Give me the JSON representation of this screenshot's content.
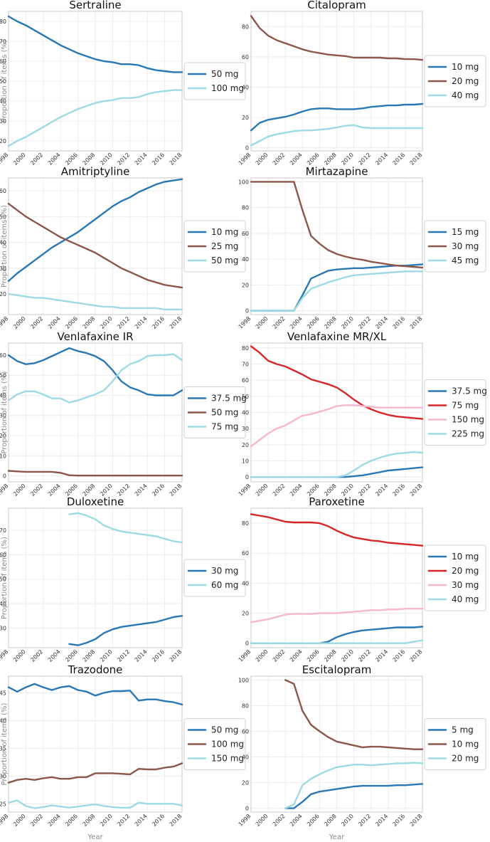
{
  "colors": {
    "blue": "#2878b5",
    "brown": "#8c564b",
    "light_blue": "#9edae5",
    "red": "#d62728",
    "pink": "#f7b6d2"
  },
  "chart_data": [
    {
      "type": "line",
      "title": "Sertraline",
      "xlabel": "",
      "ylabel": "Proportion of items (%)",
      "x": [
        1998,
        1999,
        2000,
        2001,
        2002,
        2003,
        2004,
        2005,
        2006,
        2007,
        2008,
        2009,
        2010,
        2011,
        2012,
        2013,
        2014,
        2015,
        2016,
        2017,
        2018
      ],
      "xlim": [
        1998,
        2018
      ],
      "ylim": [
        15,
        85
      ],
      "yticks": [
        20,
        30,
        40,
        50,
        60,
        70,
        80
      ],
      "series": [
        {
          "name": "50 mg",
          "color": "#2878b5",
          "values": [
            82.5,
            80,
            78,
            75.5,
            73,
            70.5,
            68,
            66,
            64,
            62.5,
            61,
            60,
            59.5,
            58.5,
            58.5,
            58,
            56.5,
            55.5,
            55,
            54.5,
            54.5
          ]
        },
        {
          "name": "100 mg",
          "color": "#9edae5",
          "values": [
            17.5,
            20,
            22,
            24.5,
            27,
            29.5,
            32,
            34,
            36,
            37.5,
            39,
            40,
            40.5,
            41.5,
            41.5,
            42,
            43.5,
            44.5,
            45,
            45.5,
            45.5
          ]
        }
      ]
    },
    {
      "type": "line",
      "title": "Citalopram",
      "xlabel": "",
      "ylabel": "",
      "x": [
        1998,
        1999,
        2000,
        2001,
        2002,
        2003,
        2004,
        2005,
        2006,
        2007,
        2008,
        2009,
        2010,
        2011,
        2012,
        2013,
        2014,
        2015,
        2016,
        2017,
        2018
      ],
      "xlim": [
        1998,
        2018
      ],
      "ylim": [
        -2,
        90
      ],
      "yticks": [
        0,
        20,
        40,
        60,
        80
      ],
      "series": [
        {
          "name": "10 mg",
          "color": "#2878b5",
          "values": [
            11.5,
            16.5,
            18.5,
            19.5,
            20.5,
            22,
            24,
            25.5,
            26,
            26,
            25.5,
            25.5,
            25.5,
            26,
            27,
            27.5,
            28,
            28,
            28.5,
            28.5,
            29
          ]
        },
        {
          "name": "20 mg",
          "color": "#8c564b",
          "values": [
            87,
            79,
            74,
            71,
            69,
            67,
            65,
            63.5,
            62.5,
            61.5,
            61,
            60.5,
            59.5,
            59.5,
            59.5,
            59.5,
            59,
            59,
            58.5,
            58.5,
            58
          ]
        },
        {
          "name": "40 mg",
          "color": "#9edae5",
          "values": [
            1.5,
            4.5,
            7.5,
            9,
            10,
            11,
            11.5,
            11.5,
            12,
            12.5,
            13.5,
            14.5,
            15,
            13.5,
            13,
            13,
            13,
            13,
            13,
            13,
            13
          ]
        }
      ]
    },
    {
      "type": "line",
      "title": "Amitriptyline",
      "xlabel": "",
      "ylabel": "Proportion of items (%)",
      "x": [
        1998,
        1999,
        2000,
        2001,
        2002,
        2003,
        2004,
        2005,
        2006,
        2007,
        2008,
        2009,
        2010,
        2011,
        2012,
        2013,
        2014,
        2015,
        2016,
        2017,
        2018
      ],
      "xlim": [
        1998,
        2018
      ],
      "ylim": [
        12,
        65
      ],
      "yticks": [
        20,
        30,
        40,
        50,
        60
      ],
      "series": [
        {
          "name": "10 mg",
          "color": "#2878b5",
          "values": [
            25,
            28,
            30.5,
            33,
            35.5,
            38,
            40,
            42,
            44,
            46.5,
            49,
            51.5,
            54,
            56,
            57.5,
            59.5,
            61,
            62.5,
            63.5,
            64,
            64.5
          ]
        },
        {
          "name": "25 mg",
          "color": "#8c564b",
          "values": [
            55,
            52.5,
            50,
            48,
            46,
            44,
            42,
            40.5,
            39,
            37.5,
            36,
            34,
            32,
            30,
            28.5,
            27,
            25.5,
            24.5,
            23.5,
            23,
            22.5
          ]
        },
        {
          "name": "50 mg",
          "color": "#9edae5",
          "values": [
            20,
            19.5,
            19,
            18.5,
            18.5,
            18,
            17.5,
            17,
            16.5,
            16,
            15.5,
            15,
            15,
            14.5,
            14.5,
            14.5,
            14.5,
            14.5,
            14,
            14,
            14
          ]
        }
      ]
    },
    {
      "type": "line",
      "title": "Mirtazapine",
      "xlabel": "",
      "ylabel": "",
      "x": [
        1998,
        1999,
        2000,
        2001,
        2002,
        2003,
        2004,
        2005,
        2006,
        2007,
        2008,
        2009,
        2010,
        2011,
        2012,
        2013,
        2014,
        2015,
        2016,
        2017,
        2018
      ],
      "xlim": [
        1998,
        2018
      ],
      "ylim": [
        -3,
        103
      ],
      "yticks": [
        0,
        20,
        40,
        60,
        80,
        100
      ],
      "series": [
        {
          "name": "15 mg",
          "color": "#2878b5",
          "values": [
            0,
            0,
            0,
            0,
            0,
            0,
            12,
            25,
            28,
            31,
            32,
            32.5,
            33,
            33,
            33.5,
            34,
            34.5,
            35,
            35,
            35.5,
            36
          ]
        },
        {
          "name": "30 mg",
          "color": "#8c564b",
          "values": [
            100,
            100,
            100,
            100,
            100,
            100,
            78,
            58,
            52,
            47,
            44,
            42,
            40.5,
            39.5,
            38,
            37,
            36,
            35,
            34.5,
            34,
            33.5
          ]
        },
        {
          "name": "45 mg",
          "color": "#9edae5",
          "values": [
            0,
            0,
            0,
            0,
            0,
            0,
            10,
            17,
            19.5,
            22,
            24,
            26,
            27.5,
            28,
            28.5,
            29,
            29.5,
            30,
            30.5,
            30.5,
            30.5
          ]
        }
      ]
    },
    {
      "type": "line",
      "title": "Venlafaxine IR",
      "xlabel": "",
      "ylabel": "Proportion of items (%)",
      "x": [
        1998,
        1999,
        2000,
        2001,
        2002,
        2003,
        2004,
        2005,
        2006,
        2007,
        2008,
        2009,
        2010,
        2011,
        2012,
        2013,
        2014,
        2015,
        2016,
        2017,
        2018
      ],
      "xlim": [
        1998,
        2018
      ],
      "ylim": [
        -3,
        66
      ],
      "yticks": [
        0,
        10,
        20,
        30,
        40,
        50,
        60
      ],
      "series": [
        {
          "name": "37.5 mg",
          "color": "#2878b5",
          "values": [
            60,
            57,
            55.5,
            56,
            57.5,
            59.5,
            61.5,
            63.5,
            62,
            61,
            59.5,
            57,
            52.5,
            47,
            44,
            42.5,
            40.5,
            40,
            40,
            40,
            42.5
          ]
        },
        {
          "name": "50 mg",
          "color": "#8c564b",
          "values": [
            2.5,
            2.2,
            2,
            2,
            2,
            2,
            1.5,
            0.3,
            0.1,
            0.1,
            0.1,
            0.1,
            0.1,
            0.1,
            0.1,
            0.1,
            0.1,
            0.1,
            0.1,
            0.1,
            0.1
          ]
        },
        {
          "name": "75 mg",
          "color": "#9edae5",
          "values": [
            37.5,
            40.5,
            42,
            42,
            40.5,
            38.5,
            38.5,
            36.5,
            37.5,
            39,
            40.5,
            42.5,
            47,
            52.5,
            55.5,
            57,
            59.5,
            60,
            60,
            60.5,
            57.5
          ]
        }
      ]
    },
    {
      "type": "line",
      "title": "Venlafaxine MR/XL",
      "xlabel": "",
      "ylabel": "",
      "x": [
        1998,
        1999,
        2000,
        2001,
        2002,
        2003,
        2004,
        2005,
        2006,
        2007,
        2008,
        2009,
        2010,
        2011,
        2012,
        2013,
        2014,
        2015,
        2016,
        2017,
        2018
      ],
      "xlim": [
        1998,
        2018
      ],
      "ylim": [
        -3,
        83
      ],
      "yticks": [
        0,
        10,
        20,
        30,
        40,
        50,
        60,
        70,
        80
      ],
      "series": [
        {
          "name": "37.5 mg",
          "color": "#2878b5",
          "values": [
            0,
            0,
            0,
            0,
            0,
            0,
            0,
            0,
            0,
            0,
            0,
            0,
            0.5,
            1,
            2,
            3,
            4,
            4.5,
            5,
            5.5,
            6
          ]
        },
        {
          "name": "75 mg",
          "color": "#d62728",
          "values": [
            81,
            77,
            72,
            70,
            68.5,
            66,
            63.5,
            60.5,
            59,
            57.5,
            55.5,
            52,
            48,
            44.5,
            42,
            40,
            38.5,
            37.5,
            37,
            36.5,
            36
          ]
        },
        {
          "name": "150 mg",
          "color": "#f7b6d2",
          "values": [
            19,
            23,
            27,
            30,
            32,
            35,
            38,
            39,
            40.5,
            42,
            44,
            44.5,
            44.5,
            44,
            43.5,
            43,
            43,
            43,
            43,
            43,
            43
          ]
        },
        {
          "name": "225 mg",
          "color": "#9edae5",
          "values": [
            0,
            0,
            0,
            0,
            0,
            0,
            0,
            0,
            0,
            0,
            0,
            1,
            4,
            7.5,
            10,
            12,
            13.5,
            14.5,
            15,
            15.5,
            15
          ]
        }
      ]
    },
    {
      "type": "line",
      "title": "Duloxetine",
      "xlabel": "",
      "ylabel": "Proportion of items (%)",
      "x": [
        2005,
        2006,
        2007,
        2008,
        2009,
        2010,
        2011,
        2012,
        2013,
        2014,
        2015,
        2016,
        2017,
        2018
      ],
      "xlim": [
        1998,
        2018
      ],
      "ylim": [
        22,
        79
      ],
      "yticks": [
        30,
        40,
        50,
        60,
        70
      ],
      "series": [
        {
          "name": "30 mg",
          "color": "#2878b5",
          "values": [
            23.5,
            23,
            24,
            25.5,
            28,
            29.5,
            30.5,
            31,
            31.5,
            32,
            32.5,
            33.5,
            34.5,
            35
          ]
        },
        {
          "name": "60 mg",
          "color": "#9edae5",
          "values": [
            76.5,
            77,
            76,
            74.5,
            72,
            70.5,
            69.5,
            69,
            68.5,
            68,
            67.5,
            66.5,
            65.5,
            65
          ]
        }
      ]
    },
    {
      "type": "line",
      "title": "Paroxetine",
      "xlabel": "",
      "ylabel": "",
      "x": [
        1998,
        1999,
        2000,
        2001,
        2002,
        2003,
        2004,
        2005,
        2006,
        2007,
        2008,
        2009,
        2010,
        2011,
        2012,
        2013,
        2014,
        2015,
        2016,
        2017,
        2018
      ],
      "xlim": [
        1998,
        2018
      ],
      "ylim": [
        -3,
        90
      ],
      "yticks": [
        0,
        20,
        40,
        60,
        80
      ],
      "series": [
        {
          "name": "10 mg",
          "color": "#2878b5",
          "values": [
            0,
            0,
            0,
            0,
            0,
            0,
            0,
            0,
            0,
            1,
            4,
            6,
            7.5,
            8.5,
            9,
            9.5,
            10,
            10.5,
            10.5,
            10.5,
            11
          ]
        },
        {
          "name": "20 mg",
          "color": "#d62728",
          "values": [
            86,
            85,
            84,
            82.5,
            81,
            80.5,
            80.5,
            80.5,
            80,
            78,
            75,
            72.5,
            70.5,
            69.5,
            68.5,
            68,
            67,
            66.5,
            66,
            65.5,
            65
          ]
        },
        {
          "name": "30 mg",
          "color": "#f7b6d2",
          "values": [
            14,
            15,
            16,
            17.5,
            19,
            19.5,
            19.5,
            19.5,
            20,
            20,
            20,
            20.5,
            21,
            21.5,
            22,
            22,
            22.5,
            22.5,
            23,
            23,
            23
          ]
        },
        {
          "name": "40 mg",
          "color": "#9edae5",
          "values": [
            0,
            0,
            0,
            0,
            0,
            0,
            0,
            0,
            0,
            0,
            0,
            0,
            0,
            0,
            0,
            0,
            0,
            0,
            0,
            1,
            2
          ]
        }
      ]
    },
    {
      "type": "line",
      "title": "Trazodone",
      "xlabel": "Year",
      "ylabel": "Proportion of items (%)",
      "x": [
        1998,
        1999,
        2000,
        2001,
        2002,
        2003,
        2004,
        2005,
        2006,
        2007,
        2008,
        2009,
        2010,
        2011,
        2012,
        2013,
        2014,
        2015,
        2016,
        2017,
        2018
      ],
      "xlim": [
        1998,
        2018
      ],
      "ylim": [
        23.5,
        48
      ],
      "yticks": [
        25,
        30,
        35,
        40,
        45
      ],
      "series": [
        {
          "name": "50 mg",
          "color": "#2878b5",
          "values": [
            46,
            45.2,
            46,
            46.6,
            46,
            45.5,
            46,
            46.2,
            45.5,
            45.2,
            44.5,
            45,
            45.3,
            45.3,
            45.4,
            43.6,
            43.8,
            43.8,
            43.5,
            43.3,
            42.9
          ]
        },
        {
          "name": "100 mg",
          "color": "#8c564b",
          "values": [
            28.8,
            29.3,
            29.5,
            29.3,
            29.6,
            29.8,
            29.5,
            29.5,
            29.8,
            29.8,
            30.5,
            30.5,
            30.5,
            30.4,
            30.3,
            31.3,
            31.2,
            31.2,
            31.5,
            31.7,
            32.3
          ]
        },
        {
          "name": "150 mg",
          "color": "#9edae5",
          "values": [
            25.2,
            25.6,
            24.6,
            24.2,
            24.4,
            24.7,
            24.5,
            24.3,
            24.5,
            24.7,
            24.9,
            24.6,
            24.4,
            24.3,
            24.3,
            25.2,
            25,
            25,
            25,
            25,
            24.7
          ]
        }
      ]
    },
    {
      "type": "line",
      "title": "Escitalopram",
      "xlabel": "Year",
      "ylabel": "",
      "x": [
        2002,
        2003,
        2004,
        2005,
        2006,
        2007,
        2008,
        2009,
        2010,
        2011,
        2012,
        2013,
        2014,
        2015,
        2016,
        2017,
        2018
      ],
      "xlim": [
        1998,
        2018
      ],
      "ylim": [
        -3,
        103
      ],
      "yticks": [
        0,
        20,
        40,
        60,
        80,
        100
      ],
      "series": [
        {
          "name": "5 mg",
          "color": "#2878b5",
          "values": [
            0,
            0,
            5,
            11,
            13,
            14,
            15,
            16,
            17,
            17.5,
            17.5,
            17.5,
            17.5,
            18,
            18,
            18.5,
            19
          ]
        },
        {
          "name": "10 mg",
          "color": "#8c564b",
          "values": [
            100,
            97,
            76,
            65,
            60,
            55.5,
            52,
            50.5,
            49,
            47.5,
            48,
            48,
            47.5,
            47,
            46.5,
            46,
            46
          ]
        },
        {
          "name": "20 mg",
          "color": "#9edae5",
          "values": [
            0,
            3,
            18,
            23,
            26.5,
            29.5,
            32,
            33,
            34,
            34,
            33.5,
            34,
            34.5,
            35,
            35,
            35.5,
            35
          ]
        }
      ]
    }
  ]
}
